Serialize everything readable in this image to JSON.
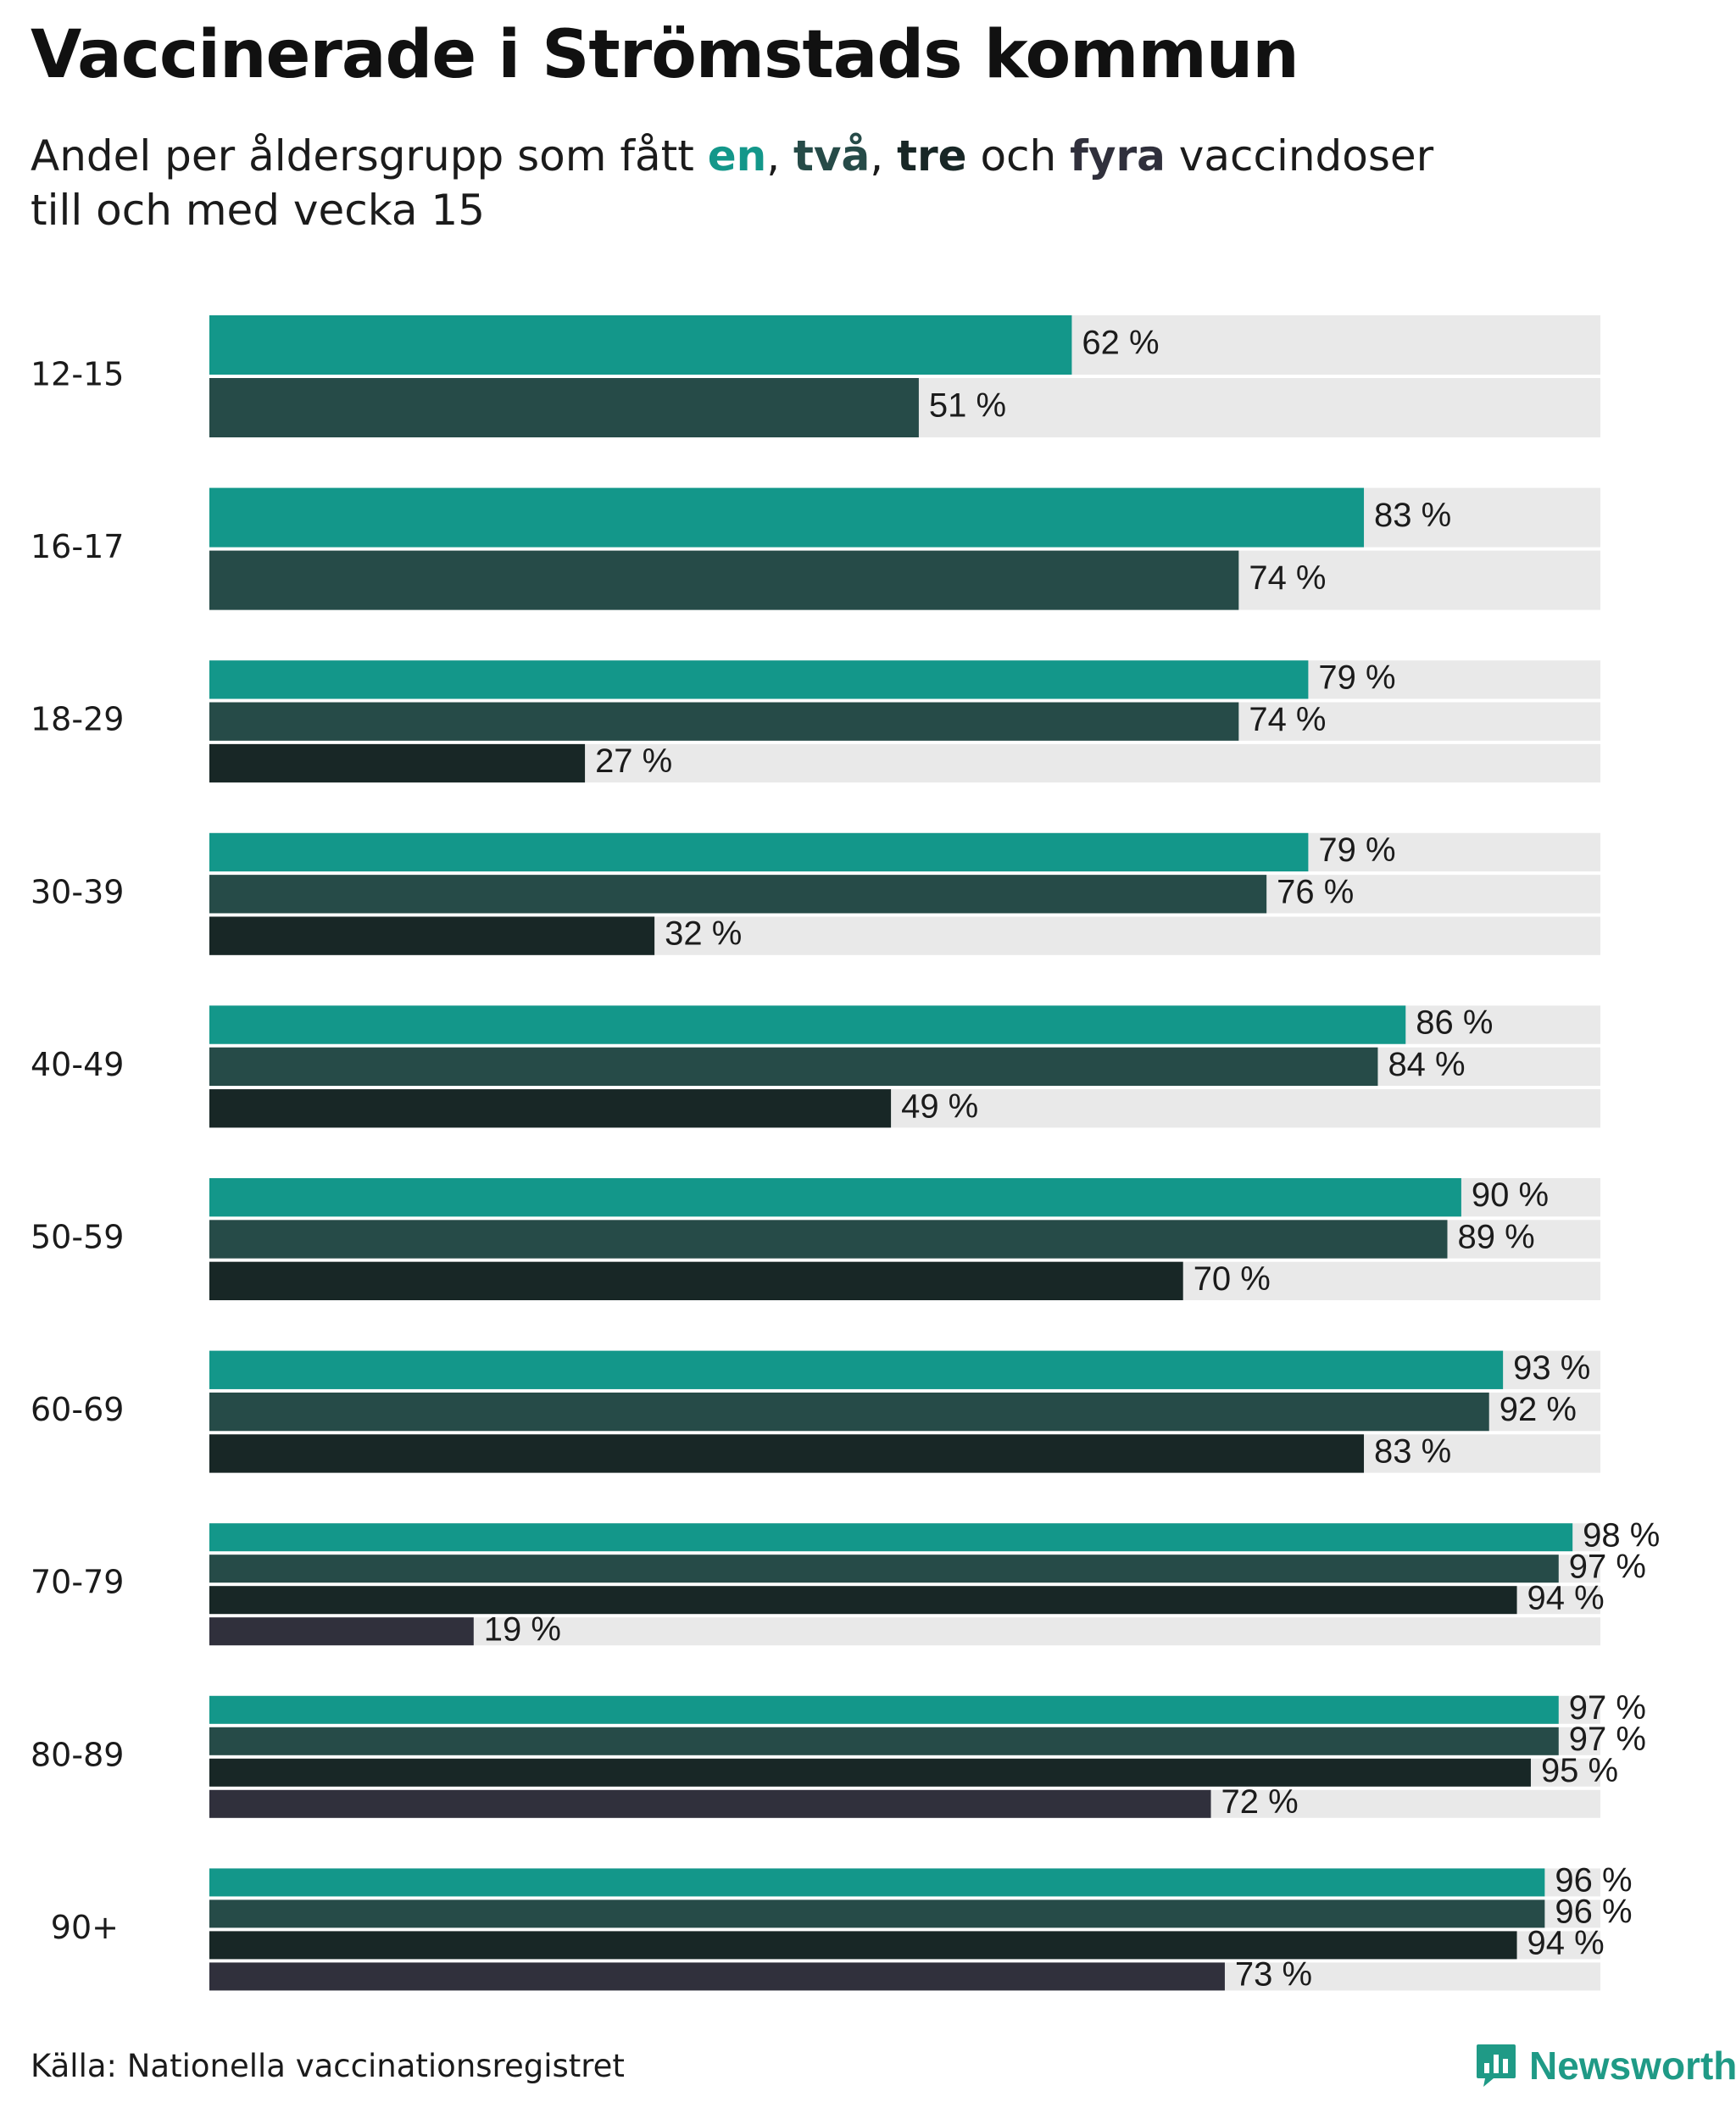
{
  "title": "Vaccinerade i Strömstads kommun",
  "subtitle": {
    "prefix": "Andel per åldersgrupp som fått ",
    "en": "en",
    "sep1": ", ",
    "tva": "två",
    "sep2": ", ",
    "tre": "tre",
    "och": " och ",
    "fyra": "fyra",
    "suffix": " vaccindoser",
    "line2": "till och med vecka 15"
  },
  "colors": {
    "en": "#13978a",
    "tva": "#264b48",
    "tre": "#182726",
    "fyra": "#30303c",
    "track": "#e9e9e9"
  },
  "chart_data": {
    "type": "bar",
    "orientation": "horizontal",
    "title": "Vaccinerade i Strömstads kommun",
    "xlim": [
      0,
      100
    ],
    "unit": "%",
    "categories": [
      "12-15",
      "16-17",
      "18-29",
      "30-39",
      "40-49",
      "50-59",
      "60-69",
      "70-79",
      "80-89",
      "90+"
    ],
    "series": [
      {
        "name": "en",
        "values": [
          62,
          83,
          79,
          79,
          86,
          90,
          93,
          98,
          97,
          96
        ]
      },
      {
        "name": "två",
        "values": [
          51,
          74,
          74,
          76,
          84,
          89,
          92,
          97,
          97,
          96
        ]
      },
      {
        "name": "tre",
        "values": [
          null,
          null,
          27,
          32,
          49,
          70,
          83,
          94,
          95,
          94
        ]
      },
      {
        "name": "fyra",
        "values": [
          null,
          null,
          null,
          null,
          null,
          null,
          null,
          19,
          72,
          73
        ]
      }
    ]
  },
  "source": "Källa: Nationella vaccinationsregistret",
  "brand": {
    "name": "Newsworthy",
    "icon": "newsworthy-logo-icon"
  }
}
